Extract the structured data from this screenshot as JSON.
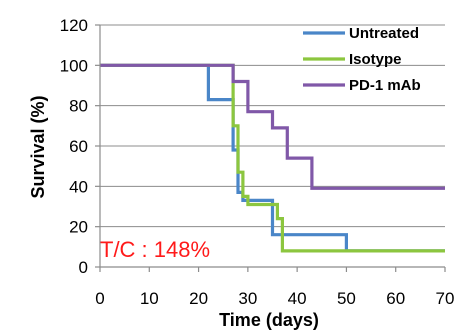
{
  "chart_data": {
    "type": "line",
    "step": true,
    "xlabel": "Time (days)",
    "ylabel": "Survival (%)",
    "xlim": [
      0,
      70
    ],
    "ylim": [
      0,
      120
    ],
    "xticks": [
      0,
      10,
      20,
      30,
      40,
      50,
      60,
      70
    ],
    "yticks": [
      0,
      20,
      40,
      60,
      80,
      100,
      120
    ],
    "grid": "horizontal",
    "legend": "top-right",
    "annotation": "T/C : 148%",
    "annotation_color": "#ff1a1a",
    "series": [
      {
        "name": "Untreated",
        "color": "#4a86c8",
        "points": [
          [
            0,
            100
          ],
          [
            22,
            100
          ],
          [
            22,
            83
          ],
          [
            27,
            83
          ],
          [
            27,
            58
          ],
          [
            28,
            58
          ],
          [
            28,
            37
          ],
          [
            29,
            37
          ],
          [
            29,
            33
          ],
          [
            35,
            33
          ],
          [
            35,
            16
          ],
          [
            50,
            16
          ],
          [
            50,
            8
          ],
          [
            70,
            8
          ]
        ]
      },
      {
        "name": "Isotype",
        "color": "#8cc63f",
        "points": [
          [
            0,
            100
          ],
          [
            27,
            100
          ],
          [
            27,
            70
          ],
          [
            28,
            70
          ],
          [
            28,
            47
          ],
          [
            29,
            47
          ],
          [
            29,
            35
          ],
          [
            30,
            35
          ],
          [
            30,
            31
          ],
          [
            36,
            31
          ],
          [
            36,
            24
          ],
          [
            37,
            24
          ],
          [
            37,
            8
          ],
          [
            70,
            8
          ]
        ]
      },
      {
        "name": "PD-1 mAb",
        "color": "#8058a8",
        "points": [
          [
            0,
            100
          ],
          [
            27,
            100
          ],
          [
            27,
            92
          ],
          [
            30,
            92
          ],
          [
            30,
            77
          ],
          [
            35,
            77
          ],
          [
            35,
            69
          ],
          [
            38,
            69
          ],
          [
            38,
            54
          ],
          [
            43,
            54
          ],
          [
            43,
            39
          ],
          [
            70,
            39
          ]
        ]
      }
    ]
  }
}
